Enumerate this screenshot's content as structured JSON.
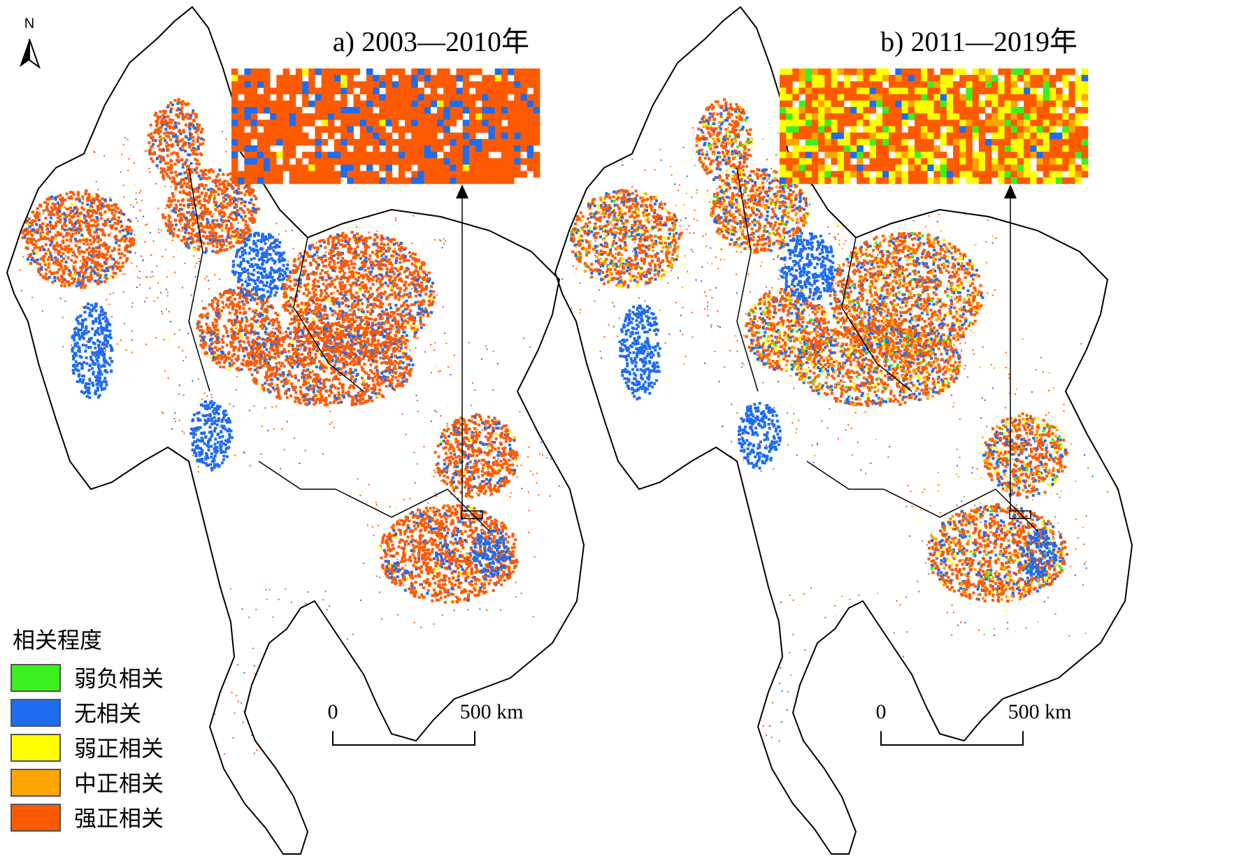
{
  "north_label": "N",
  "colors": {
    "weak_negative": "#3cf01e",
    "no_correlation": "#1e6cf0",
    "weak_positive": "#ffff00",
    "moderate_positive": "#ffa500",
    "strong_positive": "#ff5a00",
    "boundary": "#000000"
  },
  "panels": [
    {
      "title": "a) 2003—2010年",
      "inset_mix": {
        "strong_positive": 0.72,
        "no_correlation": 0.14,
        "weak_positive": 0.01,
        "empty": 0.13
      },
      "scale_bar": {
        "start_label": "0",
        "end_label": "500 km"
      }
    },
    {
      "title": "b) 2011—2019年",
      "inset_mix": {
        "strong_positive": 0.45,
        "weak_positive": 0.3,
        "moderate_positive": 0.08,
        "weak_negative": 0.07,
        "no_correlation": 0.03,
        "empty": 0.07
      },
      "scale_bar": {
        "start_label": "0",
        "end_label": "500 km"
      }
    }
  ],
  "legend": {
    "title": "相关程度",
    "items": [
      {
        "label": "弱负相关",
        "color": "#3cf01e"
      },
      {
        "label": "无相关",
        "color": "#1e6cf0"
      },
      {
        "label": "弱正相关",
        "color": "#ffff00"
      },
      {
        "label": "中正相关",
        "color": "#ffa500"
      },
      {
        "label": "强正相关",
        "color": "#ff5a00"
      }
    ]
  }
}
